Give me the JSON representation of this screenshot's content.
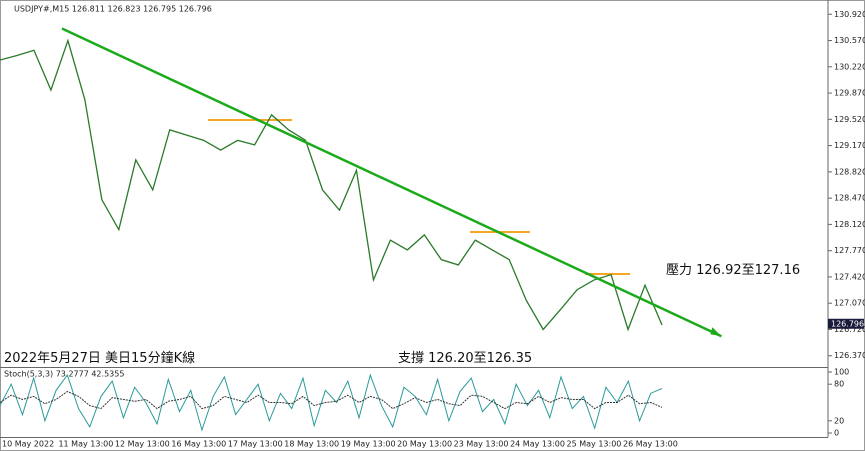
{
  "chart_data": {
    "type": "line",
    "header": "USDJPY#,M15  126.811 126.823 126.795 126.796",
    "annotations": [
      "2022年5月27日 美日15分鐘K線",
      "支撐 126.20至126.35",
      "壓力 126.92至127.16"
    ],
    "xtick_labels": [
      "10 May 2022",
      "11 May 13:00",
      "12 May 13:00",
      "16 May 13:00",
      "17 May 13:00",
      "18 May 13:00",
      "19 May 13:00",
      "20 May 13:00",
      "23 May 13:00",
      "24 May 13:00",
      "25 May 13:00",
      "26 May 13:00"
    ],
    "series": [
      {
        "name": "USDJPY#,M15",
        "color": "#2a7a2a",
        "values": [
          130.31,
          130.37,
          130.44,
          129.91,
          130.57,
          129.78,
          128.45,
          128.05,
          128.98,
          128.58,
          129.38,
          129.31,
          129.24,
          129.11,
          129.24,
          129.18,
          129.58,
          129.38,
          129.24,
          128.58,
          128.31,
          128.84,
          127.38,
          127.91,
          127.78,
          127.98,
          127.65,
          127.58,
          127.91,
          127.78,
          127.65,
          127.11,
          126.72,
          126.98,
          127.25,
          127.38,
          127.45,
          126.72,
          127.31,
          126.78
        ]
      }
    ],
    "trendline": {
      "color": "#1aaa1a",
      "x": [
        3.65,
        42.5
      ],
      "values": [
        130.73,
        126.63
      ]
    },
    "last_price": 126.796,
    "ylim": [
      126.22,
      131.11
    ],
    "yticks": [
      {
        "value": 130.92,
        "label": "130.920"
      },
      {
        "value": 130.57,
        "label": "130.570"
      },
      {
        "value": 130.22,
        "label": "130.220"
      },
      {
        "value": 129.87,
        "label": "129.870"
      },
      {
        "value": 129.52,
        "label": "129.520"
      },
      {
        "value": 129.17,
        "label": "129.170"
      },
      {
        "value": 128.82,
        "label": "128.820"
      },
      {
        "value": 128.47,
        "label": "128.470"
      },
      {
        "value": 128.12,
        "label": "128.120"
      },
      {
        "value": 127.77,
        "label": "127.770"
      },
      {
        "value": 127.42,
        "label": "127.420"
      },
      {
        "value": 127.07,
        "label": "127.070"
      },
      {
        "value": 126.72,
        "label": "126.720"
      },
      {
        "value": 126.37,
        "label": "126.370"
      }
    ],
    "stoch": {
      "label": "Stoch(5,3,3) 73.2777 42.5355",
      "ylim": [
        0,
        100
      ],
      "yticks": [
        0,
        20,
        80,
        100
      ],
      "series": [
        {
          "name": "Main",
          "color": "#2a9a9a",
          "values": [
            45,
            80,
            30,
            90,
            20,
            70,
            95,
            40,
            10,
            60,
            85,
            25,
            75,
            50,
            15,
            88,
            35,
            70,
            5,
            60,
            92,
            30,
            55,
            80,
            20,
            65,
            40,
            90,
            12,
            70,
            50,
            85,
            25,
            95,
            45,
            10,
            75,
            60,
            30,
            88,
            20,
            68,
            90,
            35,
            55,
            15,
            80,
            45,
            70,
            25,
            92,
            40,
            60,
            8,
            75,
            50,
            85,
            20,
            65,
            73
          ]
        },
        {
          "name": "Signal",
          "color": "#333333",
          "values": [
            50,
            62,
            55,
            60,
            48,
            55,
            68,
            60,
            45,
            40,
            58,
            55,
            52,
            55,
            40,
            52,
            55,
            60,
            40,
            45,
            60,
            55,
            50,
            62,
            50,
            50,
            48,
            60,
            45,
            50,
            52,
            62,
            50,
            60,
            55,
            40,
            48,
            58,
            50,
            55,
            48,
            45,
            62,
            60,
            50,
            40,
            50,
            48,
            60,
            50,
            58,
            55,
            55,
            40,
            50,
            50,
            62,
            48,
            50,
            42
          ]
        }
      ]
    }
  }
}
